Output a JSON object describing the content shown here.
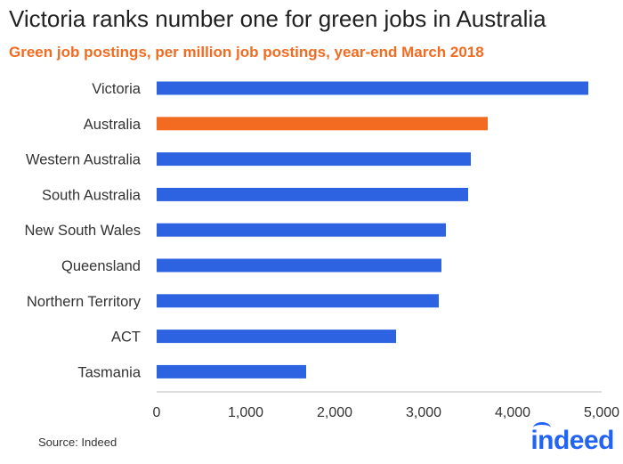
{
  "chart_data": {
    "type": "bar",
    "orientation": "horizontal",
    "title": "Victoria ranks number one for green jobs in Australia",
    "subtitle": "Green job postings, per million job postings, year-end March 2018",
    "categories": [
      "Victoria",
      "Australia",
      "Western Australia",
      "South Australia",
      "New South Wales",
      "Queensland",
      "Northern Territory",
      "ACT",
      "Tasmania"
    ],
    "values": [
      4850,
      3720,
      3530,
      3500,
      3250,
      3200,
      3170,
      2690,
      1680
    ],
    "highlight_index": 1,
    "xlim": [
      0,
      5000
    ],
    "xticks": [
      0,
      1000,
      2000,
      3000,
      4000,
      5000
    ],
    "xtick_labels": [
      "0",
      "1,000",
      "2,000",
      "3,000",
      "4,000",
      "5,000"
    ],
    "xlabel": "",
    "ylabel": "",
    "grid": false,
    "colors": {
      "bar": "#2d63e0",
      "highlight": "#f26b21",
      "title": "#222222",
      "subtitle": "#f26b21"
    }
  },
  "footer": {
    "source": "Source: Indeed",
    "logo_text": "indeed"
  }
}
